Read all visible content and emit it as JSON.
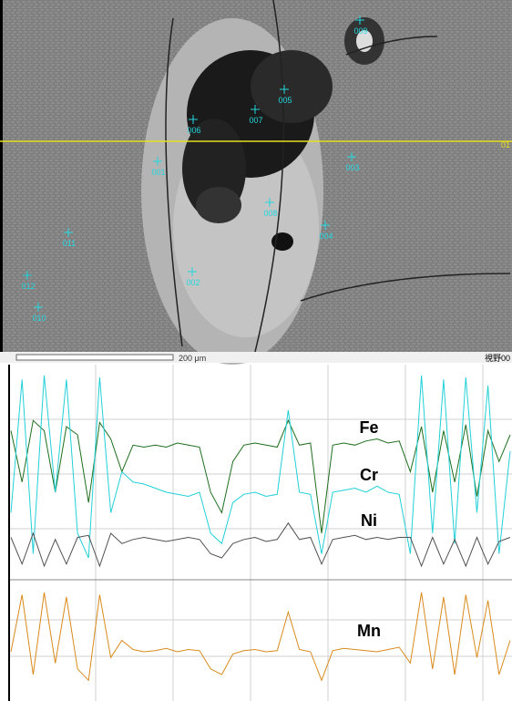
{
  "image": {
    "points": [
      {
        "label": "009"
      },
      {
        "label": "005"
      },
      {
        "label": "007"
      },
      {
        "label": "006"
      },
      {
        "label": "003"
      },
      {
        "label": "001"
      },
      {
        "label": "008"
      },
      {
        "label": "004"
      },
      {
        "label": "011"
      },
      {
        "label": "002"
      },
      {
        "label": "012"
      },
      {
        "label": "010"
      }
    ],
    "scan_line_label": "01",
    "scale_bar": "200 μm",
    "field_label": "視野00"
  },
  "chart_data": [
    {
      "type": "line",
      "ylim": [
        0,
        100
      ],
      "series": [
        {
          "name": "Fe",
          "color": "#1e6e1e",
          "values": [
            70,
            45,
            75,
            70,
            40,
            72,
            68,
            35,
            74,
            66,
            50,
            63,
            62,
            63,
            62,
            64,
            63,
            62,
            40,
            30,
            55,
            63,
            64,
            63,
            62,
            75,
            63,
            64,
            20,
            63,
            64,
            63,
            65,
            66,
            64,
            65,
            50,
            72,
            40,
            70,
            45,
            73,
            38,
            70,
            55,
            68
          ]
        },
        {
          "name": "Cr",
          "color": "#22d0d8",
          "values": [
            30,
            95,
            10,
            97,
            40,
            95,
            20,
            8,
            96,
            30,
            50,
            45,
            44,
            42,
            40,
            39,
            38,
            40,
            20,
            15,
            35,
            39,
            40,
            38,
            39,
            80,
            40,
            39,
            10,
            40,
            41,
            42,
            40,
            43,
            40,
            39,
            10,
            97,
            20,
            95,
            15,
            96,
            30,
            92,
            10,
            60
          ]
        },
        {
          "name": "Ni",
          "color": "#505050",
          "values": [
            18,
            5,
            20,
            4,
            17,
            5,
            18,
            19,
            4,
            20,
            15,
            17,
            18,
            17,
            16,
            17,
            18,
            17,
            10,
            8,
            15,
            17,
            18,
            16,
            17,
            25,
            17,
            18,
            5,
            17,
            18,
            19,
            17,
            18,
            17,
            18,
            18,
            4,
            18,
            5,
            17,
            4,
            18,
            5,
            16,
            18
          ]
        }
      ]
    },
    {
      "type": "line",
      "ylim": [
        0,
        100
      ],
      "series": [
        {
          "name": "Mn",
          "color": "#d98a1c",
          "values": [
            40,
            90,
            20,
            92,
            30,
            88,
            25,
            15,
            90,
            35,
            50,
            42,
            40,
            41,
            43,
            40,
            42,
            41,
            25,
            20,
            38,
            41,
            42,
            40,
            41,
            75,
            42,
            40,
            15,
            41,
            43,
            42,
            41,
            40,
            42,
            44,
            30,
            92,
            25,
            88,
            20,
            90,
            35,
            85,
            20,
            50
          ]
        }
      ]
    }
  ]
}
